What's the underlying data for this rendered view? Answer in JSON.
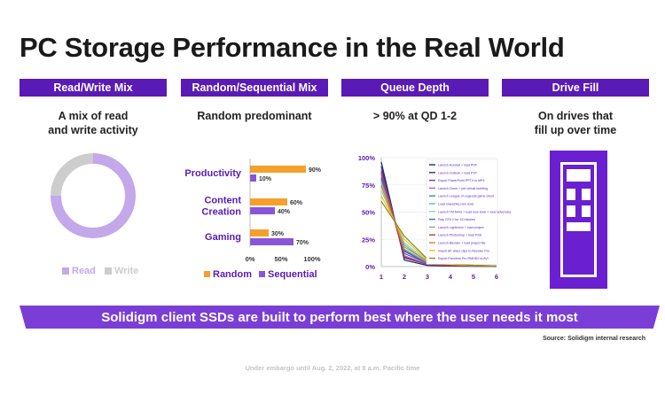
{
  "title": "PC Storage Performance in the Real World",
  "columns": [
    {
      "header": "Read/Write Mix",
      "subtitle": [
        "A mix of read",
        "and write activity"
      ]
    },
    {
      "header": "Random/Sequential Mix",
      "subtitle": [
        "Random predominant"
      ]
    },
    {
      "header": "Queue Depth",
      "subtitle": [
        "> 90% at QD 1-2"
      ]
    },
    {
      "header": "Drive Fill",
      "subtitle": [
        "On drives that",
        "fill up over time"
      ]
    }
  ],
  "colors": {
    "brand": "#5a1ab5",
    "banner": "#7a3ed6",
    "read": "#c3a8ea",
    "write": "#cdcdcd",
    "random": "#f5a02c",
    "sequential": "#8a55d6",
    "drive": "#6a1fd0"
  },
  "chart_data": [
    {
      "type": "pie",
      "title": "Read/Write Mix",
      "categories": [
        "Read",
        "Write"
      ],
      "values": [
        75,
        25
      ],
      "legend": "bottom"
    },
    {
      "type": "bar",
      "orientation": "horizontal",
      "title": "Random/Sequential Mix",
      "categories": [
        [
          "Productivity"
        ],
        [
          "Content",
          "Creation"
        ],
        [
          "Gaming"
        ]
      ],
      "series": [
        {
          "name": "Random",
          "values": [
            90,
            60,
            30
          ]
        },
        {
          "name": "Sequential",
          "values": [
            10,
            40,
            70
          ]
        }
      ],
      "value_labels": [
        [
          "90%",
          "60%",
          "30%"
        ],
        [
          "10%",
          "40%",
          "70%"
        ]
      ],
      "xticks": [
        "0%",
        "50%",
        "100%"
      ],
      "xlim": [
        0,
        100
      ],
      "legend": "bottom"
    },
    {
      "type": "line",
      "title": "Queue Depth",
      "x": [
        1,
        2,
        3,
        4,
        5,
        6
      ],
      "xticks": [
        "1",
        "2",
        "3",
        "4",
        "5",
        "6"
      ],
      "yticks": [
        "100%",
        "75%",
        "50%",
        "25%",
        "0%"
      ],
      "ylim": [
        0,
        100
      ],
      "legend": "top-right",
      "series": [
        {
          "name": "Launch Acrobat + load PDF",
          "color": "#1b2a6b",
          "values": [
            96,
            6,
            1,
            0.5,
            0.3,
            0.2
          ]
        },
        {
          "name": "Launch Outlook + load PST",
          "color": "#3a2a8a",
          "values": [
            92,
            8,
            2,
            1,
            0.5,
            0.3
          ]
        },
        {
          "name": "Export PowerPoint PPTX to MP4",
          "color": "#6c3db8",
          "values": [
            88,
            12,
            3,
            1.5,
            0.8,
            0.5
          ]
        },
        {
          "name": "Launch Zoom + join virtual meeting",
          "color": "#9a6ad6",
          "values": [
            85,
            10,
            2,
            1,
            0.6,
            0.4
          ]
        },
        {
          "name": "Launch League of Legends game client",
          "color": "#2b8fa0",
          "values": [
            80,
            15,
            3,
            1,
            0.5,
            0.3
          ]
        },
        {
          "name": "Load Gaea2Hq new level",
          "color": "#49c2b0",
          "values": [
            75,
            20,
            4,
            1.5,
            0.8,
            0.5
          ]
        },
        {
          "name": "Launch TM:MHG + load new level + view adversary",
          "color": "#7fd6c8",
          "values": [
            70,
            22,
            5,
            2,
            1,
            0.6
          ]
        },
        {
          "name": "Play GTA V for 15 minutes",
          "color": "#2e6bd6",
          "values": [
            82,
            14,
            3,
            1,
            0.5,
            0.3
          ]
        },
        {
          "name": "Launch Lightroom + load project",
          "color": "#a0a0a0",
          "values": [
            78,
            16,
            4,
            1.5,
            0.8,
            0.5
          ]
        },
        {
          "name": "Launch Photoshop + load PSD",
          "color": "#c0392b",
          "values": [
            86,
            9,
            2,
            1,
            0.5,
            0.3
          ]
        },
        {
          "name": "Launch Blender + load project file",
          "color": "#e67e22",
          "values": [
            74,
            18,
            5,
            2,
            1,
            0.6
          ]
        },
        {
          "name": "Import 8K video clips to Resolve Pro",
          "color": "#f1c40f",
          "values": [
            65,
            25,
            6,
            2,
            1,
            0.5
          ]
        },
        {
          "name": "Export Premiere Pro RMHD2 to AVI",
          "color": "#7d8c2f",
          "values": [
            60,
            28,
            7,
            2.5,
            1.2,
            0.6
          ]
        }
      ]
    }
  ],
  "banner": "Solidigm client SSDs are built to perform best where the user needs it most",
  "source": "Source: Solidigm internal research",
  "embargo": "Under embargo until Aug. 2, 2022, at 8 a.m. Pacific time"
}
